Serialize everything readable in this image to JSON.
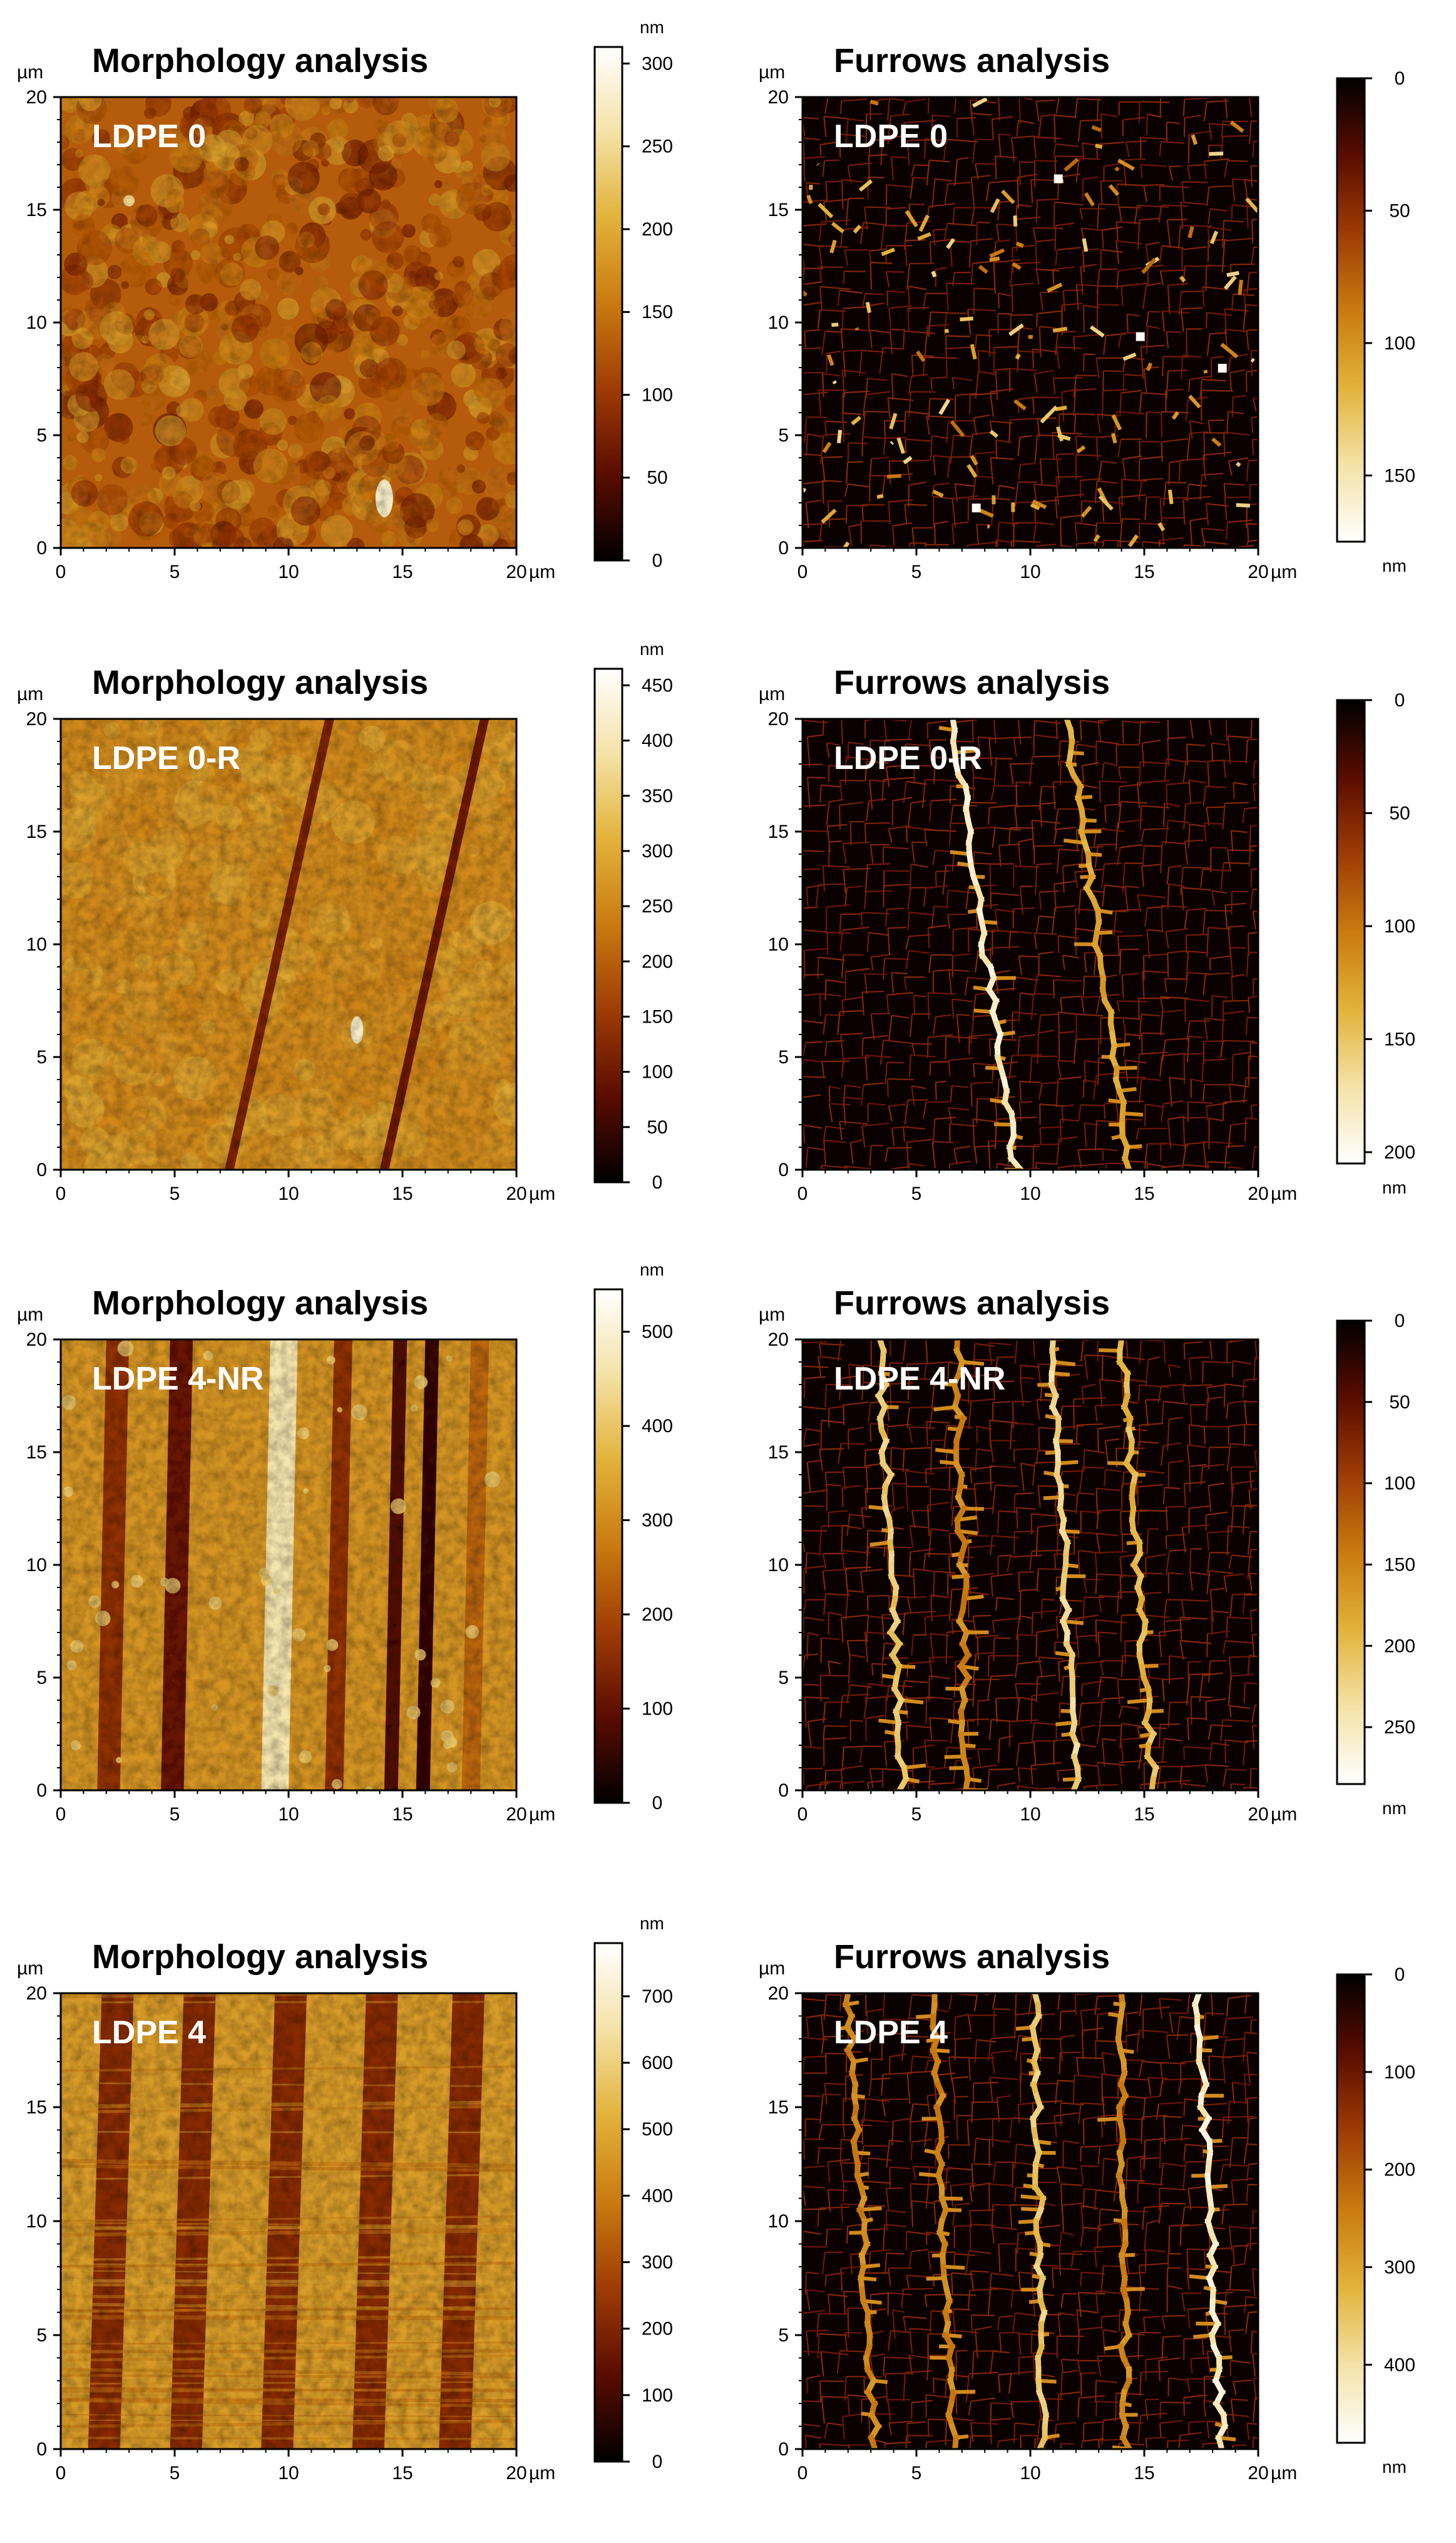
{
  "axis_unit": "µm",
  "tick_values": [
    "0",
    "5",
    "10",
    "15",
    "20"
  ],
  "colorbar_unit": "nm",
  "colors": {
    "afm_scale": [
      "#000000",
      "#5a0c00",
      "#9e3b05",
      "#c97a10",
      "#e2b23a",
      "#f4e2a6",
      "#ffffff"
    ],
    "frame": "#000000",
    "label_text": "#ffffff"
  },
  "rows": [
    {
      "morphology": {
        "title": "Morphology analysis",
        "sample": "LDPE 0",
        "colorbar_ticks": [
          "0",
          "50",
          "100",
          "150",
          "200",
          "250",
          "300"
        ],
        "colorbar_max": 310,
        "pattern": "granular"
      },
      "furrows": {
        "title": "Furrows analysis",
        "sample": "LDPE 0",
        "colorbar_ticks": [
          "0",
          "50",
          "100",
          "150"
        ],
        "colorbar_max": 175,
        "pattern": "scattered"
      }
    },
    {
      "morphology": {
        "title": "Morphology analysis",
        "sample": "LDPE 0-R",
        "colorbar_ticks": [
          "0",
          "50",
          "100",
          "150",
          "200",
          "250",
          "300",
          "350",
          "400",
          "450"
        ],
        "colorbar_max": 465,
        "pattern": "two-diagonal"
      },
      "furrows": {
        "title": "Furrows analysis",
        "sample": "LDPE 0-R",
        "colorbar_ticks": [
          "0",
          "50",
          "100",
          "150",
          "200"
        ],
        "colorbar_max": 205,
        "pattern": "two-lines"
      }
    },
    {
      "morphology": {
        "title": "Morphology analysis",
        "sample": "LDPE 4-NR",
        "colorbar_ticks": [
          "0",
          "100",
          "200",
          "300",
          "400",
          "500"
        ],
        "colorbar_max": 545,
        "pattern": "vertical-stripes"
      },
      "furrows": {
        "title": "Furrows analysis",
        "sample": "LDPE 4-NR",
        "colorbar_ticks": [
          "0",
          "50",
          "100",
          "150",
          "200",
          "250"
        ],
        "colorbar_max": 285,
        "pattern": "four-lines"
      }
    },
    {
      "morphology": {
        "title": "Morphology analysis",
        "sample": "LDPE 4",
        "colorbar_ticks": [
          "0",
          "100",
          "200",
          "300",
          "400",
          "500",
          "600",
          "700"
        ],
        "colorbar_max": 780,
        "pattern": "banded-stripes"
      },
      "furrows": {
        "title": "Furrows analysis",
        "sample": "LDPE 4",
        "colorbar_ticks": [
          "0",
          "100",
          "200",
          "300",
          "400"
        ],
        "colorbar_max": 480,
        "pattern": "five-lines"
      }
    }
  ]
}
